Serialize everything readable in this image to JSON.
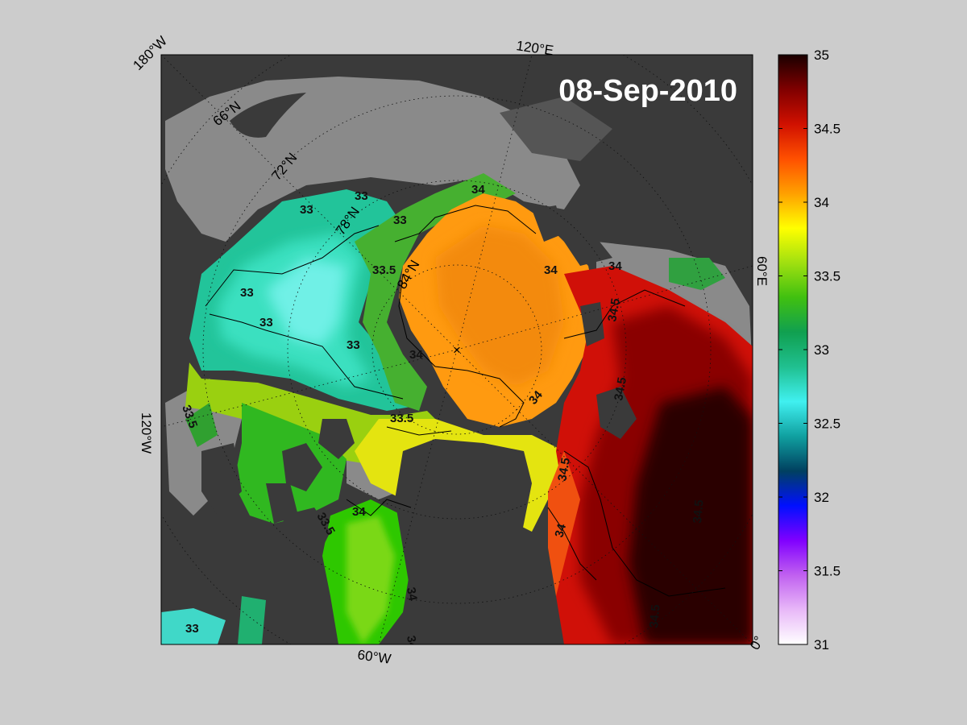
{
  "title": {
    "date": "08-Sep-2010"
  },
  "map": {
    "longitude_labels": [
      "180°W",
      "120°E",
      "60°E",
      "0°",
      "60°W",
      "120°W"
    ],
    "latitude_labels": [
      "66°N",
      "72°N",
      "78°N",
      "84°N"
    ],
    "contour_labels": [
      "33",
      "33",
      "33",
      "33",
      "33",
      "33",
      "33",
      "33.5",
      "34",
      "34",
      "34",
      "33.5",
      "33.5",
      "34",
      "34",
      "33.5",
      "34",
      "34.5",
      "34.5",
      "34.5",
      "34",
      "34.5",
      "34",
      "34",
      "34.5"
    ],
    "pole_marker": "×"
  },
  "colorbar": {
    "ticks": [
      "35",
      "34.5",
      "34",
      "33.5",
      "33",
      "32.5",
      "32",
      "31.5",
      "31"
    ],
    "min": 31,
    "max": 35,
    "colors": [
      "#ffffff",
      "#e8b8f8",
      "#c060f0",
      "#8000ff",
      "#0010ff",
      "#004060",
      "#10a0a0",
      "#40f0f0",
      "#20c090",
      "#10a050",
      "#40c010",
      "#a0e010",
      "#ffff00",
      "#ffa000",
      "#ff5000",
      "#d01000",
      "#800000",
      "#1a0000"
    ]
  }
}
